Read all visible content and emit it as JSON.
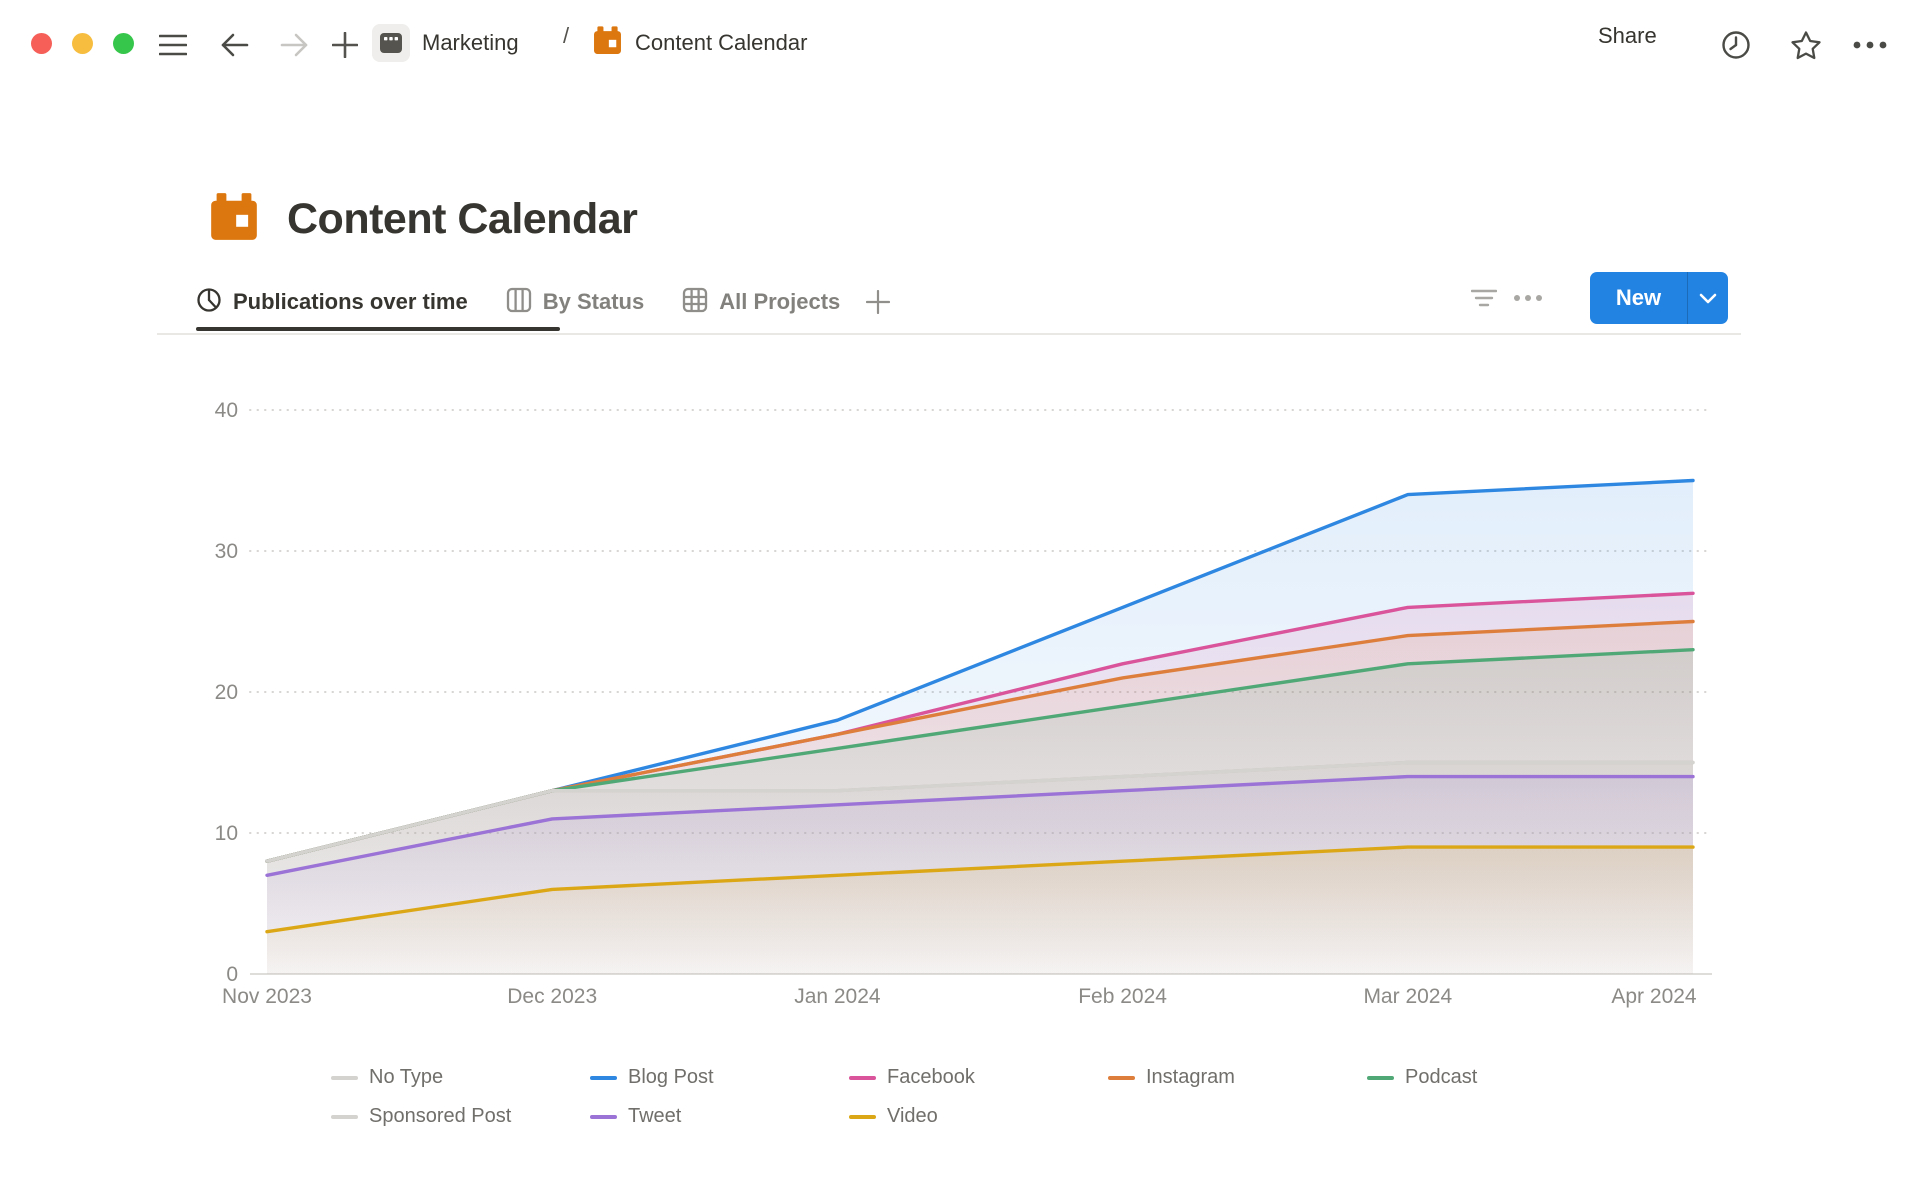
{
  "topbar": {
    "breadcrumb_workspace": "Marketing",
    "breadcrumb_separator": "/",
    "breadcrumb_page": "Content Calendar",
    "share_label": "Share",
    "icons": [
      "traffic-lights",
      "hamburger-icon",
      "back-arrow-icon",
      "forward-arrow-icon",
      "plus-icon",
      "clock-history-icon",
      "star-icon",
      "more-ellipsis-icon"
    ]
  },
  "page": {
    "title": "Content Calendar",
    "title_icon": "orange-calendar-icon"
  },
  "tabs": [
    {
      "label": "Publications over time",
      "icon": "chart-view-icon",
      "active": true
    },
    {
      "label": "By Status",
      "icon": "board-view-icon",
      "active": false
    },
    {
      "label": "All Projects",
      "icon": "table-view-icon",
      "active": false
    }
  ],
  "toolbar": {
    "new_label": "New",
    "accent_color": "#2383E2",
    "icons": [
      "filter-icon",
      "view-options-ellipsis-icon",
      "chevron-down-icon",
      "add-view-plus-icon"
    ]
  },
  "chart_data": {
    "type": "area",
    "title": "Publications over time",
    "categories": [
      "Nov 2023",
      "Dec 2023",
      "Jan 2024",
      "Feb 2024",
      "Mar 2024",
      "Apr 2024"
    ],
    "series": [
      {
        "name": "No Type",
        "color": "#D5D3CF",
        "values": [
          8,
          13,
          13,
          14,
          15,
          15
        ]
      },
      {
        "name": "Blog Post",
        "color": "#2E87E1",
        "values": [
          8,
          13,
          18,
          26,
          34,
          35
        ]
      },
      {
        "name": "Facebook",
        "color": "#D9549B",
        "values": [
          8,
          13,
          17,
          22,
          26,
          27
        ]
      },
      {
        "name": "Instagram",
        "color": "#DE7E3D",
        "values": [
          8,
          13,
          17,
          21,
          24,
          25
        ]
      },
      {
        "name": "Podcast",
        "color": "#51A877",
        "values": [
          8,
          13,
          16,
          19,
          22,
          23
        ]
      },
      {
        "name": "Sponsored Post",
        "color": "#D5D3CF",
        "values": [
          8,
          13,
          13,
          14,
          15,
          15
        ]
      },
      {
        "name": "Tweet",
        "color": "#9B72D6",
        "values": [
          7,
          11,
          12,
          13,
          14,
          14
        ]
      },
      {
        "name": "Video",
        "color": "#DCA716",
        "values": [
          3,
          6,
          7,
          8,
          9,
          9
        ]
      }
    ],
    "y_ticks": [
      0,
      10,
      20,
      30,
      40
    ],
    "ylim": [
      0,
      40
    ],
    "xlabel": "",
    "ylabel": "",
    "grid": "horizontal-dotted",
    "legend_position": "bottom"
  }
}
